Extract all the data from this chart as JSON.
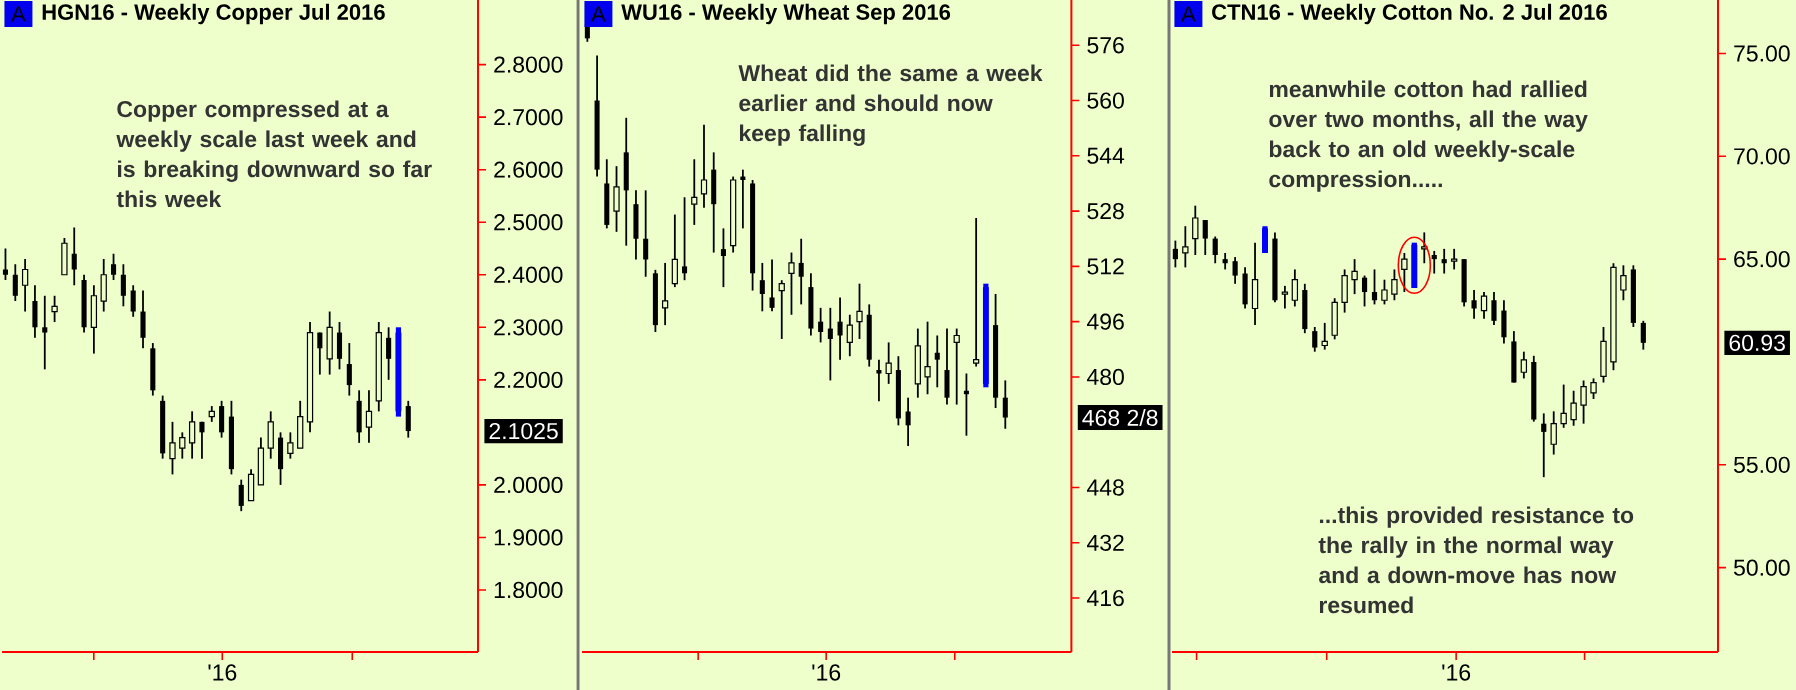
{
  "chart_data": [
    {
      "type": "candlestick",
      "title": "HGN16 - Weekly  Copper Jul 2016",
      "annotations": [
        "A",
        "Copper compressed at a weekly scale last week and is breaking downward so far this week",
        "'16",
        "2.1025"
      ],
      "categories": [
        null,
        null,
        null,
        null,
        null,
        null,
        null,
        null,
        null,
        null,
        null,
        null,
        null,
        null,
        null,
        null,
        null,
        null,
        null,
        null,
        null,
        null,
        null,
        null,
        null,
        null,
        null,
        null,
        null,
        null,
        null,
        null,
        null,
        null,
        null,
        null,
        null,
        null,
        null,
        null,
        null,
        null
      ],
      "ohlc": [
        [
          2.41,
          2.45,
          2.39,
          2.4
        ],
        [
          2.4,
          2.42,
          2.35,
          2.36
        ],
        [
          2.38,
          2.43,
          2.33,
          2.41
        ],
        [
          2.35,
          2.38,
          2.28,
          2.3
        ],
        [
          2.3,
          2.36,
          2.22,
          2.29
        ],
        [
          2.33,
          2.36,
          2.31,
          2.34
        ],
        [
          2.4,
          2.47,
          2.4,
          2.46
        ],
        [
          2.44,
          2.49,
          2.38,
          2.41
        ],
        [
          2.39,
          2.4,
          2.29,
          2.3
        ],
        [
          2.3,
          2.38,
          2.25,
          2.36
        ],
        [
          2.35,
          2.43,
          2.33,
          2.4
        ],
        [
          2.42,
          2.44,
          2.39,
          2.4
        ],
        [
          2.4,
          2.42,
          2.34,
          2.36
        ],
        [
          2.37,
          2.38,
          2.32,
          2.33
        ],
        [
          2.33,
          2.37,
          2.26,
          2.28
        ],
        [
          2.26,
          2.27,
          2.17,
          2.18
        ],
        [
          2.16,
          2.17,
          2.05,
          2.06
        ],
        [
          2.05,
          2.12,
          2.02,
          2.08
        ],
        [
          2.07,
          2.1,
          2.05,
          2.09
        ],
        [
          2.08,
          2.14,
          2.05,
          2.12
        ],
        [
          2.12,
          2.12,
          2.05,
          2.1
        ],
        [
          2.13,
          2.15,
          2.12,
          2.14
        ],
        [
          2.15,
          2.16,
          2.09,
          2.1
        ],
        [
          2.13,
          2.16,
          2.02,
          2.03
        ],
        [
          2.0,
          2.01,
          1.95,
          1.96
        ],
        [
          1.97,
          2.03,
          1.97,
          2.02
        ],
        [
          2.0,
          2.09,
          2.0,
          2.07
        ],
        [
          2.07,
          2.14,
          2.05,
          2.12
        ],
        [
          2.09,
          2.1,
          2.0,
          2.03
        ],
        [
          2.06,
          2.1,
          2.05,
          2.08
        ],
        [
          2.07,
          2.16,
          2.07,
          2.13
        ],
        [
          2.12,
          2.31,
          2.1,
          2.29
        ],
        [
          2.29,
          2.29,
          2.21,
          2.26
        ],
        [
          2.24,
          2.33,
          2.21,
          2.3
        ],
        [
          2.29,
          2.31,
          2.22,
          2.24
        ],
        [
          2.23,
          2.27,
          2.17,
          2.19
        ],
        [
          2.16,
          2.18,
          2.08,
          2.1
        ],
        [
          2.11,
          2.18,
          2.08,
          2.14
        ],
        [
          2.16,
          2.31,
          2.14,
          2.29
        ],
        [
          2.28,
          2.3,
          2.2,
          2.24
        ],
        [
          2.29,
          2.3,
          2.13,
          2.14
        ],
        [
          2.15,
          2.16,
          2.09,
          2.1025
        ]
      ],
      "colors": [
        "#000000",
        "#000000",
        "#000000",
        "#000000",
        "#000000",
        "#000000",
        "#000000",
        "#000000",
        "#000000",
        "#000000",
        "#000000",
        "#000000",
        "#000000",
        "#000000",
        "#000000",
        "#000000",
        "#000000",
        "#000000",
        "#000000",
        "#000000",
        "#000000",
        "#000000",
        "#000000",
        "#000000",
        "#000000",
        "#000000",
        "#000000",
        "#000000",
        "#000000",
        "#000000",
        "#000000",
        "#000000",
        "#000000",
        "#000000",
        "#000000",
        "#000000",
        "#000000",
        "#000000",
        "#000000",
        "#000000",
        "#0000ff",
        "#000000"
      ],
      "ylim": [
        1.682,
        2.923
      ],
      "yticks": [
        {
          "value": 1.8,
          "label": "1.8000"
        },
        {
          "value": 1.9,
          "label": "1.9000"
        },
        {
          "value": 2.0,
          "label": "2.0000"
        },
        {
          "value": 2.2,
          "label": "2.2000"
        },
        {
          "value": 2.3,
          "label": "2.3000"
        },
        {
          "value": 2.4,
          "label": "2.4000"
        },
        {
          "value": 2.5,
          "label": "2.5000"
        },
        {
          "value": 2.6,
          "label": "2.6000"
        },
        {
          "value": 2.7,
          "label": "2.7000"
        },
        {
          "value": 2.8,
          "label": "2.8000"
        }
      ]
    },
    {
      "type": "candlestick",
      "title": "WU16 - Weekly  Wheat Sep 2016",
      "annotations": [
        "A",
        "Wheat did the same a week earlier and should now keep falling",
        "'16",
        "468 2/8"
      ],
      "categories": [
        null,
        null,
        null,
        null,
        null,
        null,
        null,
        null,
        null,
        null,
        null,
        null,
        null,
        null,
        null,
        null,
        null,
        null,
        null,
        null,
        null,
        null,
        null,
        null,
        null,
        null,
        null,
        null,
        null,
        null,
        null,
        null,
        null,
        null,
        null,
        null,
        null,
        null,
        null,
        null,
        null,
        null,
        null,
        null
      ],
      "ohlc": [
        [
          582,
          583,
          577,
          578
        ],
        [
          560,
          573,
          538,
          540
        ],
        [
          536,
          543,
          523,
          524
        ],
        [
          528,
          541,
          522,
          535
        ],
        [
          545,
          555,
          518,
          534
        ],
        [
          530,
          534,
          514,
          520
        ],
        [
          520,
          534,
          509,
          514
        ],
        [
          510,
          511,
          493,
          495
        ],
        [
          500,
          513,
          495,
          502
        ],
        [
          507,
          527,
          506,
          514
        ],
        [
          512,
          532,
          508,
          510
        ],
        [
          530,
          543,
          524,
          532
        ],
        [
          533,
          553,
          529,
          537
        ],
        [
          540,
          545,
          516,
          530
        ],
        [
          517,
          523,
          506,
          515
        ],
        [
          518,
          538,
          516,
          537
        ],
        [
          538,
          540,
          523,
          537
        ],
        [
          536,
          537,
          505,
          510
        ],
        [
          508,
          513,
          499,
          504
        ],
        [
          503,
          514,
          499,
          500
        ],
        [
          505,
          508,
          491,
          507
        ],
        [
          510,
          516,
          498,
          513
        ],
        [
          513,
          520,
          501,
          509
        ],
        [
          506,
          510,
          492,
          494
        ],
        [
          496,
          500,
          490,
          493
        ],
        [
          494,
          500,
          479,
          491
        ],
        [
          496,
          503,
          485,
          492
        ],
        [
          490,
          498,
          486,
          495
        ],
        [
          496,
          507,
          491,
          499
        ],
        [
          498,
          501,
          483,
          485
        ],
        [
          482,
          485,
          473,
          481
        ],
        [
          481,
          490,
          478,
          484
        ],
        [
          482,
          486,
          466,
          468
        ],
        [
          470,
          474,
          460,
          466
        ],
        [
          478,
          494,
          474,
          489
        ],
        [
          480,
          496,
          475,
          483
        ],
        [
          487,
          492,
          477,
          485
        ],
        [
          482,
          494,
          472,
          474
        ],
        [
          490,
          494,
          472,
          492
        ],
        [
          476,
          481,
          463,
          475
        ],
        [
          484,
          526,
          483,
          485
        ],
        [
          506,
          507,
          477,
          478
        ],
        [
          495,
          504,
          471,
          474
        ],
        [
          474,
          479,
          465,
          468.25
        ]
      ],
      "colors": [
        "#000000",
        "#000000",
        "#000000",
        "#000000",
        "#000000",
        "#000000",
        "#000000",
        "#000000",
        "#000000",
        "#000000",
        "#000000",
        "#000000",
        "#000000",
        "#000000",
        "#000000",
        "#000000",
        "#000000",
        "#000000",
        "#000000",
        "#000000",
        "#000000",
        "#000000",
        "#000000",
        "#000000",
        "#000000",
        "#000000",
        "#000000",
        "#000000",
        "#000000",
        "#000000",
        "#000000",
        "#000000",
        "#000000",
        "#000000",
        "#000000",
        "#000000",
        "#000000",
        "#000000",
        "#000000",
        "#000000",
        "#000000",
        "#0000ff",
        "#000000",
        "#000000"
      ],
      "ylim": [
        400.4,
        589.1
      ],
      "yticks": [
        {
          "value": 416,
          "label": "416"
        },
        {
          "value": 432,
          "label": "432"
        },
        {
          "value": 448,
          "label": "448"
        },
        {
          "value": 480,
          "label": "480"
        },
        {
          "value": 496,
          "label": "496"
        },
        {
          "value": 512,
          "label": "512"
        },
        {
          "value": 528,
          "label": "528"
        },
        {
          "value": 544,
          "label": "544"
        },
        {
          "value": 560,
          "label": "560"
        },
        {
          "value": 576,
          "label": "576"
        }
      ]
    },
    {
      "type": "candlestick",
      "title": "CTN16 - Weekly  Cotton No. 2 Jul 2016",
      "annotations": [
        "A",
        "meanwhile cotton had rallied over two months, all the way back to an old weekly-scale compression.....",
        "...this provided resistance to the rally in the normal way and a down-move has now resumed",
        "'16",
        "60.93"
      ],
      "categories": [
        null,
        null,
        null,
        null,
        null,
        null,
        null,
        null,
        null,
        null,
        null,
        null,
        null,
        null,
        null,
        null,
        null,
        null,
        null,
        null,
        null,
        null,
        null,
        null,
        null,
        null,
        null,
        null,
        null,
        null,
        null,
        null,
        null,
        null,
        null,
        null,
        null,
        null,
        null,
        null,
        null,
        null,
        null,
        null,
        null,
        null,
        null,
        null
      ],
      "ohlc": [
        [
          65.5,
          65.9,
          64.6,
          65.0
        ],
        [
          65.3,
          66.6,
          64.6,
          65.6
        ],
        [
          66.0,
          67.6,
          65.2,
          67.0
        ],
        [
          66.9,
          66.9,
          65.2,
          66.0
        ],
        [
          66.0,
          66.1,
          64.8,
          65.2
        ],
        [
          65.0,
          65.3,
          64.5,
          64.8
        ],
        [
          64.9,
          65.1,
          63.8,
          64.2
        ],
        [
          64.3,
          64.6,
          62.6,
          62.8
        ],
        [
          62.6,
          65.8,
          61.8,
          64.0
        ],
        [
          66.5,
          66.6,
          65.3,
          65.3
        ],
        [
          66.0,
          66.3,
          62.9,
          63.0
        ],
        [
          63.3,
          63.7,
          62.6,
          63.4
        ],
        [
          63.0,
          64.5,
          62.7,
          64.0
        ],
        [
          63.5,
          63.8,
          61.4,
          61.6
        ],
        [
          61.5,
          61.7,
          60.5,
          60.7
        ],
        [
          60.8,
          61.9,
          60.6,
          61.0
        ],
        [
          61.3,
          63.1,
          61.1,
          62.9
        ],
        [
          62.9,
          64.5,
          62.4,
          64.2
        ],
        [
          64.0,
          65.0,
          63.3,
          64.4
        ],
        [
          64.1,
          64.2,
          62.7,
          63.4
        ],
        [
          63.4,
          64.5,
          62.8,
          63.0
        ],
        [
          63.0,
          64.0,
          62.8,
          63.5
        ],
        [
          63.3,
          64.5,
          63.0,
          64.0
        ],
        [
          64.5,
          65.3,
          63.4,
          65.0
        ],
        [
          65.7,
          65.8,
          63.6,
          63.6
        ],
        [
          65.5,
          66.3,
          64.8,
          65.6
        ],
        [
          65.2,
          65.4,
          64.3,
          65.0
        ],
        [
          65.0,
          65.5,
          64.3,
          64.8
        ],
        [
          64.9,
          65.5,
          64.5,
          65.0
        ],
        [
          65.0,
          65.0,
          62.7,
          62.9
        ],
        [
          63.0,
          63.5,
          62.1,
          62.6
        ],
        [
          62.5,
          63.4,
          62.1,
          63.2
        ],
        [
          63.0,
          63.4,
          61.8,
          62.0
        ],
        [
          62.5,
          63.0,
          60.9,
          61.2
        ],
        [
          61.0,
          61.5,
          59.0,
          59.0
        ],
        [
          59.5,
          60.5,
          59.2,
          60.1
        ],
        [
          60.0,
          60.3,
          57.1,
          57.2
        ],
        [
          57.0,
          57.5,
          54.4,
          56.6
        ],
        [
          56.0,
          57.6,
          55.5,
          57.0
        ],
        [
          57.0,
          58.9,
          56.8,
          57.5
        ],
        [
          57.2,
          58.6,
          56.9,
          58.0
        ],
        [
          57.9,
          59.1,
          57.0,
          58.8
        ],
        [
          58.5,
          59.2,
          58.2,
          59.0
        ],
        [
          59.3,
          61.7,
          59.0,
          61.0
        ],
        [
          60.0,
          64.8,
          59.6,
          64.6
        ],
        [
          63.5,
          64.7,
          63.0,
          64.2
        ],
        [
          64.5,
          64.7,
          61.7,
          61.9
        ],
        [
          61.9,
          62.0,
          60.6,
          60.93
        ]
      ],
      "colors": [
        "#000000",
        "#000000",
        "#000000",
        "#000000",
        "#000000",
        "#000000",
        "#000000",
        "#000000",
        "#000000",
        "#0000ff",
        "#000000",
        "#000000",
        "#000000",
        "#000000",
        "#000000",
        "#000000",
        "#000000",
        "#000000",
        "#000000",
        "#000000",
        "#000000",
        "#000000",
        "#000000",
        "#000000",
        "#0000ff",
        "#000000",
        "#000000",
        "#000000",
        "#000000",
        "#000000",
        "#000000",
        "#000000",
        "#000000",
        "#000000",
        "#000000",
        "#000000",
        "#000000",
        "#000000",
        "#000000",
        "#000000",
        "#000000",
        "#000000",
        "#000000",
        "#000000",
        "#000000",
        "#000000",
        "#000000",
        "#000000"
      ],
      "ylim": [
        45.9,
        77.6
      ],
      "yticks": [
        {
          "value": 50,
          "label": "50.00"
        },
        {
          "value": 55,
          "label": "55.00"
        },
        {
          "value": 65,
          "label": "65.00"
        },
        {
          "value": 70,
          "label": "70.00"
        },
        {
          "value": 75,
          "label": "75.00"
        }
      ]
    }
  ]
}
